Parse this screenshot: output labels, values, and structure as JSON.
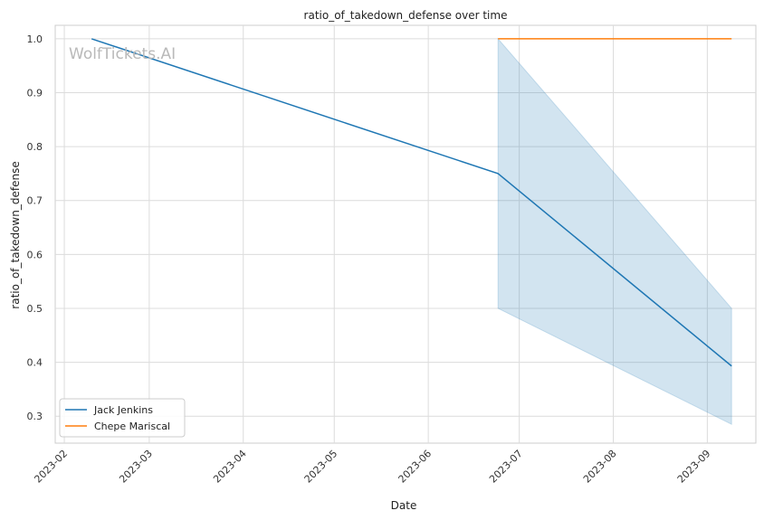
{
  "chart_data": {
    "type": "line",
    "title": "ratio_of_takedown_defense over time",
    "xlabel": "Date",
    "ylabel": "ratio_of_takedown_defense",
    "watermark": "WolfTickets.AI",
    "x_ticks": [
      "2023-02",
      "2023-03",
      "2023-04",
      "2023-05",
      "2023-06",
      "2023-07",
      "2023-08",
      "2023-09"
    ],
    "y_ticks": [
      "0.3",
      "0.4",
      "0.5",
      "0.6",
      "0.7",
      "0.8",
      "0.9",
      "1.0"
    ],
    "xlim": [
      "2023-01-29",
      "2023-09-17"
    ],
    "ylim": [
      0.25,
      1.025
    ],
    "grid": true,
    "legend_position": "lower-left",
    "series": [
      {
        "name": "Jack Jenkins",
        "color": "#1f77b4",
        "points": [
          {
            "x": "2023-02-10",
            "y": 1.0
          },
          {
            "x": "2023-06-24",
            "y": 0.75
          },
          {
            "x": "2023-09-09",
            "y": 0.393
          }
        ],
        "band": [
          {
            "x": "2023-06-24",
            "low": 0.5,
            "high": 1.0
          },
          {
            "x": "2023-09-09",
            "low": 0.285,
            "high": 0.5
          }
        ]
      },
      {
        "name": "Chepe Mariscal",
        "color": "#ff7f0e",
        "points": [
          {
            "x": "2023-06-24",
            "y": 1.0
          },
          {
            "x": "2023-09-09",
            "y": 1.0
          }
        ]
      }
    ]
  }
}
